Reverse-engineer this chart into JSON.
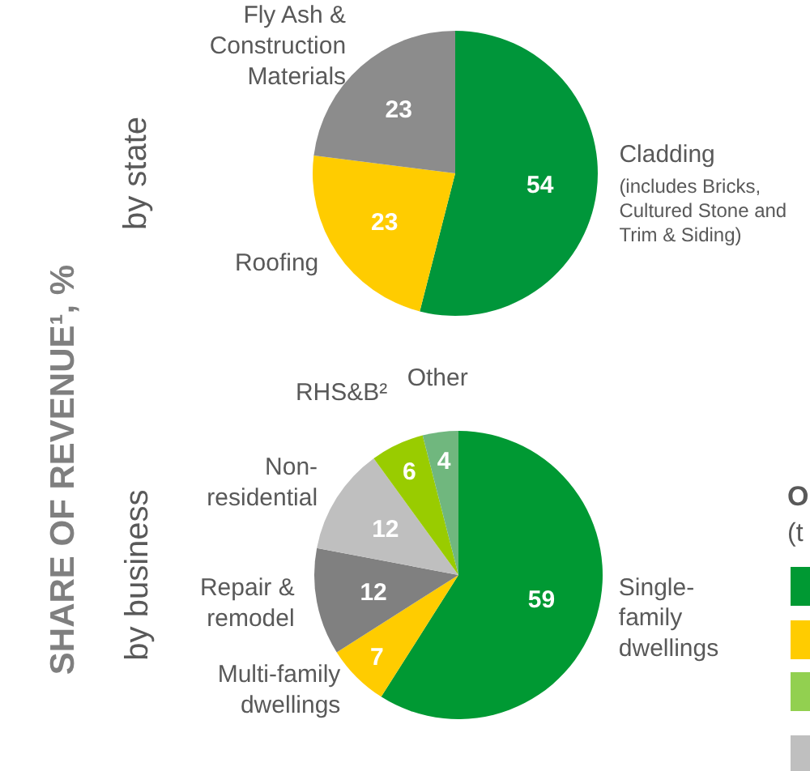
{
  "chart_data": [
    {
      "type": "pie",
      "ylabel": "by state",
      "annotations": [
        "SHARE OF REVENUE¹, %"
      ],
      "data_labels": true,
      "categories": [
        "Cladding\n(includes Bricks,\nCultured Stone and\nTrim & Siding)",
        "Roofing",
        "Fly Ash &\nConstruction\nMaterials"
      ],
      "values": [
        54,
        23,
        23
      ],
      "colors": [
        "#00963a",
        "#ffcc00",
        "#8c8c8c"
      ]
    },
    {
      "type": "pie",
      "ylabel": "by business",
      "annotations": [
        "O",
        "(t"
      ],
      "data_labels": true,
      "categories": [
        "Single-\nfamily\ndwellings",
        "Multi-family\ndwellings",
        "Repair &\nremodel",
        "Non-\nresidential",
        "RHS&B²",
        "Other"
      ],
      "values": [
        59,
        7,
        12,
        12,
        6,
        4
      ],
      "colors": [
        "#009933",
        "#ffcc00",
        "#808080",
        "#bfbfbf",
        "#99cc00",
        "#70b77e"
      ]
    }
  ]
}
